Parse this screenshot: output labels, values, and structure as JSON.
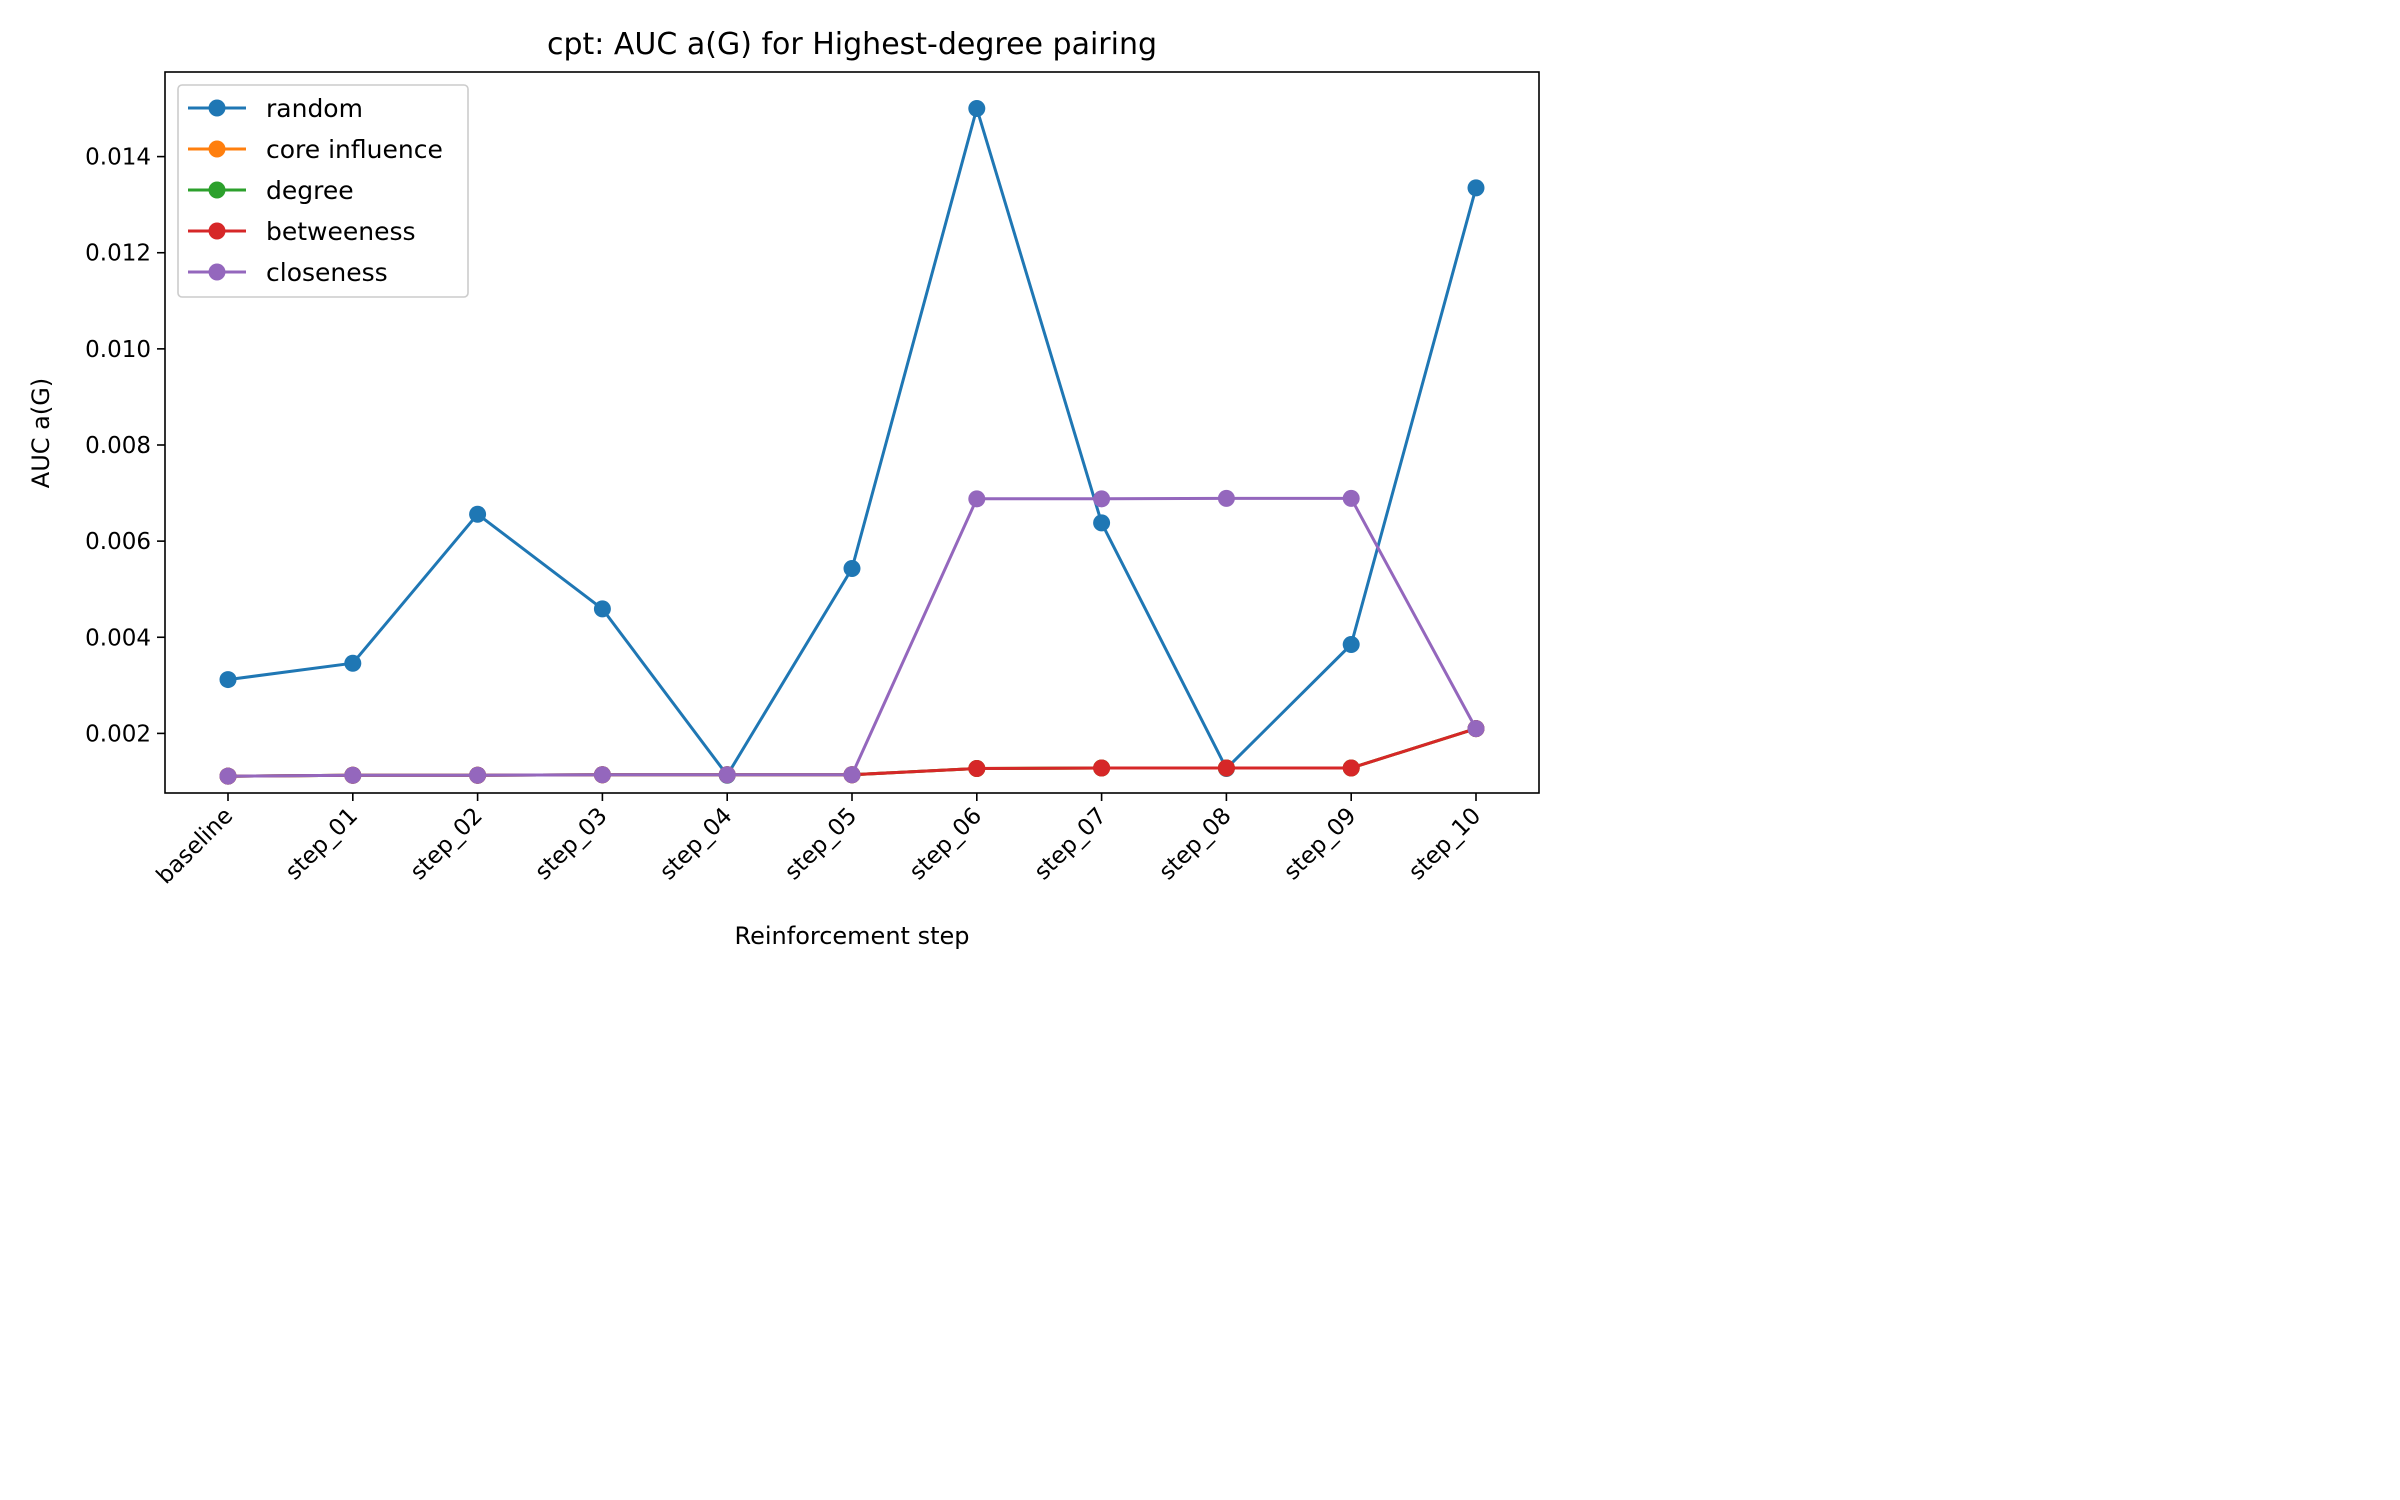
{
  "chart_data": {
    "type": "line",
    "title": "cpt: AUC a(G) for Highest-degree pairing",
    "xlabel": "Reinforcement step",
    "ylabel": "AUC a(G)",
    "categories": [
      "baseline",
      "step_01",
      "step_02",
      "step_03",
      "step_04",
      "step_05",
      "step_06",
      "step_07",
      "step_08",
      "step_09",
      "step_10"
    ],
    "yticks": [
      "0.002",
      "0.004",
      "0.006",
      "0.008",
      "0.010",
      "0.012",
      "0.014"
    ],
    "ylim": [
      0.00076,
      0.01576
    ],
    "grid": false,
    "legend_position": "top-left",
    "series": [
      {
        "name": "random",
        "color": "#1f77b4",
        "values": [
          0.00312,
          0.00346,
          0.00656,
          0.00459,
          0.00113,
          0.00543,
          0.015,
          0.00638,
          0.00127,
          0.00385,
          0.01335
        ]
      },
      {
        "name": "core influence",
        "color": "#ff7f0e",
        "values": [
          0.00111,
          0.00113,
          0.00113,
          0.00114,
          0.00114,
          0.00114,
          0.00127,
          0.00128,
          0.00128,
          0.00128,
          0.0021
        ]
      },
      {
        "name": "degree",
        "color": "#2ca02c",
        "values": [
          0.00111,
          0.00113,
          0.00113,
          0.00114,
          0.00114,
          0.00114,
          0.00127,
          0.00128,
          0.00128,
          0.00128,
          0.0021
        ]
      },
      {
        "name": "betweeness",
        "color": "#d62728",
        "values": [
          0.00111,
          0.00113,
          0.00113,
          0.00114,
          0.00114,
          0.00114,
          0.00127,
          0.00128,
          0.00128,
          0.00128,
          0.0021
        ]
      },
      {
        "name": "closeness",
        "color": "#9467bd",
        "values": [
          0.00111,
          0.00113,
          0.00113,
          0.00114,
          0.00114,
          0.00114,
          0.00688,
          0.00688,
          0.00689,
          0.00689,
          0.0021
        ]
      }
    ]
  }
}
